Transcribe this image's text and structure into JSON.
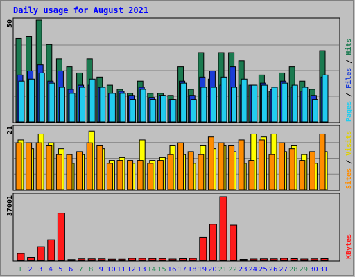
{
  "chart_data": {
    "type": "bar",
    "title": "Daily usage for August 2021",
    "categories": [
      "1",
      "2",
      "3",
      "4",
      "5",
      "6",
      "7",
      "8",
      "9",
      "10",
      "11",
      "12",
      "13",
      "14",
      "15",
      "16",
      "17",
      "18",
      "19",
      "20",
      "21",
      "22",
      "23",
      "24",
      "25",
      "26",
      "27",
      "28",
      "29",
      "30",
      "31"
    ],
    "weekend_days": [
      "1",
      "7",
      "8",
      "14",
      "15",
      "21",
      "22",
      "28",
      "29"
    ],
    "colors": {
      "hits": "#1b7a50",
      "files": "#1a3cd6",
      "pages": "#22ccee",
      "visits": "#ffff00",
      "sites": "#ff8c00",
      "kbytes": "#ff1a1a",
      "weekday_label": "#0000ff",
      "weekend_label": "#2a8a58",
      "title": "#0000ff"
    },
    "panels": [
      {
        "id": "hits-files-pages",
        "max_label": "50",
        "ylim": [
          0,
          50
        ],
        "legend": {
          "pages": "Pages",
          "files": "Files",
          "hits": "Hits",
          "sep": " / "
        },
        "series": [
          {
            "name": "Hits",
            "values": [
              41,
              42,
              50,
              38,
              31,
              27,
              24,
              31,
              22,
              18,
              16,
              14,
              20,
              14,
              14,
              13,
              27,
              16,
              34,
              21,
              34,
              34,
              30,
              18,
              23,
              15,
              24,
              27,
              20,
              16,
              35
            ]
          },
          {
            "name": "Files",
            "values": [
              23,
              25,
              28,
              20,
              25,
              16,
              18,
              18,
              17,
              14,
              15,
              13,
              17,
              12,
              13,
              11,
              20,
              13,
              22,
              25,
              18,
              27,
              18,
              18,
              19,
              16,
              20,
              17,
              15,
              13,
              22
            ]
          },
          {
            "name": "Pages",
            "values": [
              20,
              21,
              24,
              19,
              17,
              14,
              17,
              21,
              17,
              14,
              14,
              11,
              16,
              11,
              13,
              11,
              19,
              11,
              17,
              17,
              22,
              17,
              21,
              18,
              18,
              17,
              19,
              18,
              17,
              11,
              23
            ]
          }
        ]
      },
      {
        "id": "visits-sites",
        "max_label": "21",
        "ylim": [
          0,
          21
        ],
        "legend": {
          "sites": "Sites",
          "visits": "Visits",
          "sep": " / "
        },
        "series": [
          {
            "name": "Visits",
            "values": [
              17,
              14,
              19,
              16,
              14,
              9,
              12,
              20,
              14,
              10,
              11,
              9,
              17,
              10,
              11,
              15,
              12,
              9,
              15,
              14,
              15,
              13,
              9,
              19,
              18,
              19,
              13,
              15,
              12,
              9,
              13
            ]
          },
          {
            "name": "Sites",
            "values": [
              16,
              16,
              16,
              15,
              12,
              12,
              13,
              16,
              15,
              9,
              10,
              10,
              10,
              9,
              10,
              12,
              16,
              13,
              12,
              18,
              16,
              15,
              17,
              10,
              17,
              12,
              16,
              14,
              10,
              13,
              19
            ]
          }
        ]
      },
      {
        "id": "kbytes",
        "max_label": "37001",
        "ylim": [
          0,
          37001
        ],
        "legend": {
          "kbytes": "KBytes"
        },
        "series": [
          {
            "name": "KBytes",
            "values": [
              4000,
              1800,
              8000,
              12000,
              27500,
              500,
              900,
              900,
              900,
              700,
              700,
              1200,
              1200,
              1100,
              1100,
              800,
              1000,
              1200,
              13500,
              21000,
              37001,
              20500,
              600,
              800,
              900,
              900,
              1200,
              1000,
              800,
              900,
              1000
            ]
          }
        ]
      }
    ]
  }
}
